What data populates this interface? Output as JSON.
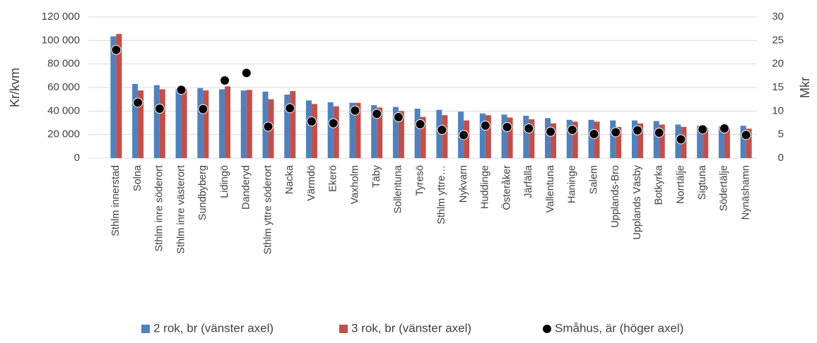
{
  "chart_data": {
    "type": "bar",
    "categories": [
      "Sthlm innerstad",
      "Solna",
      "Sthlm inre söderort",
      "Sthlm inre västerort",
      "Sundbyberg",
      "Lidingö",
      "Danderyd",
      "Sthlm yttre söderort",
      "Nacka",
      "Värmdö",
      "Ekerö",
      "Vaxholm",
      "Täby",
      "Sollentuna",
      "Tyresö",
      "Sthlm yttre…",
      "Nykvarn",
      "Huddinge",
      "Österåker",
      "Järfälla",
      "Vallentuna",
      "Haninge",
      "Salem",
      "Upplands-Bro",
      "Upplands Väsby",
      "Botkyrka",
      "Norrtälje",
      "Sigtuna",
      "Södertälje",
      "Nynäshamn"
    ],
    "series": [
      {
        "name": "2 rok, br (vänster axel)",
        "color": "#4f81bd",
        "type": "bar",
        "values": [
          103500,
          63000,
          62000,
          59000,
          59500,
          58500,
          57500,
          56500,
          54000,
          49000,
          47500,
          47000,
          45000,
          43500,
          42000,
          41000,
          39500,
          38000,
          37000,
          36000,
          34000,
          32500,
          32500,
          32000,
          32000,
          31500,
          28500,
          27500,
          27000,
          27500
        ]
      },
      {
        "name": "3 rok, br (vänster axel)",
        "color": "#c0504d",
        "type": "bar",
        "values": [
          105500,
          57500,
          58500,
          59000,
          57500,
          61000,
          58000,
          50000,
          57000,
          46000,
          44000,
          47000,
          43000,
          40000,
          35000,
          36500,
          32000,
          36500,
          34500,
          33000,
          29500,
          31000,
          31000,
          26500,
          29500,
          28500,
          26500,
          25500,
          25500,
          25000
        ]
      },
      {
        "name": "Småhus, är (höger axel)",
        "color": "#000000",
        "type": "scatter",
        "axis": "y2",
        "values": [
          23,
          11.8,
          10.5,
          14.5,
          10.4,
          16.5,
          18.1,
          6.7,
          10.6,
          7.8,
          7.4,
          10.1,
          9.4,
          8.7,
          7.2,
          6.0,
          4.9,
          6.9,
          6.6,
          6.3,
          5.6,
          6.0,
          5.1,
          5.5,
          5.9,
          5.4,
          4.0,
          6.1,
          6.3,
          4.9
        ]
      }
    ],
    "ylabel": "Kr/kvm",
    "y2label": "Mkr",
    "ylim": [
      0,
      120000
    ],
    "yticks": [
      0,
      {
        "value": 20000,
        "label": "20 000"
      },
      {
        "value": 40000,
        "label": "40 000"
      },
      {
        "value": 60000,
        "label": "60 000"
      },
      {
        "value": 80000,
        "label": "80 000"
      },
      {
        "value": 100000,
        "label": "100 000"
      },
      {
        "value": 120000,
        "label": "120 000"
      }
    ],
    "y2lim": [
      0,
      30
    ],
    "y2ticks": [
      0,
      5,
      10,
      15,
      20,
      25,
      30
    ],
    "grid": true,
    "legend": "bottom"
  }
}
